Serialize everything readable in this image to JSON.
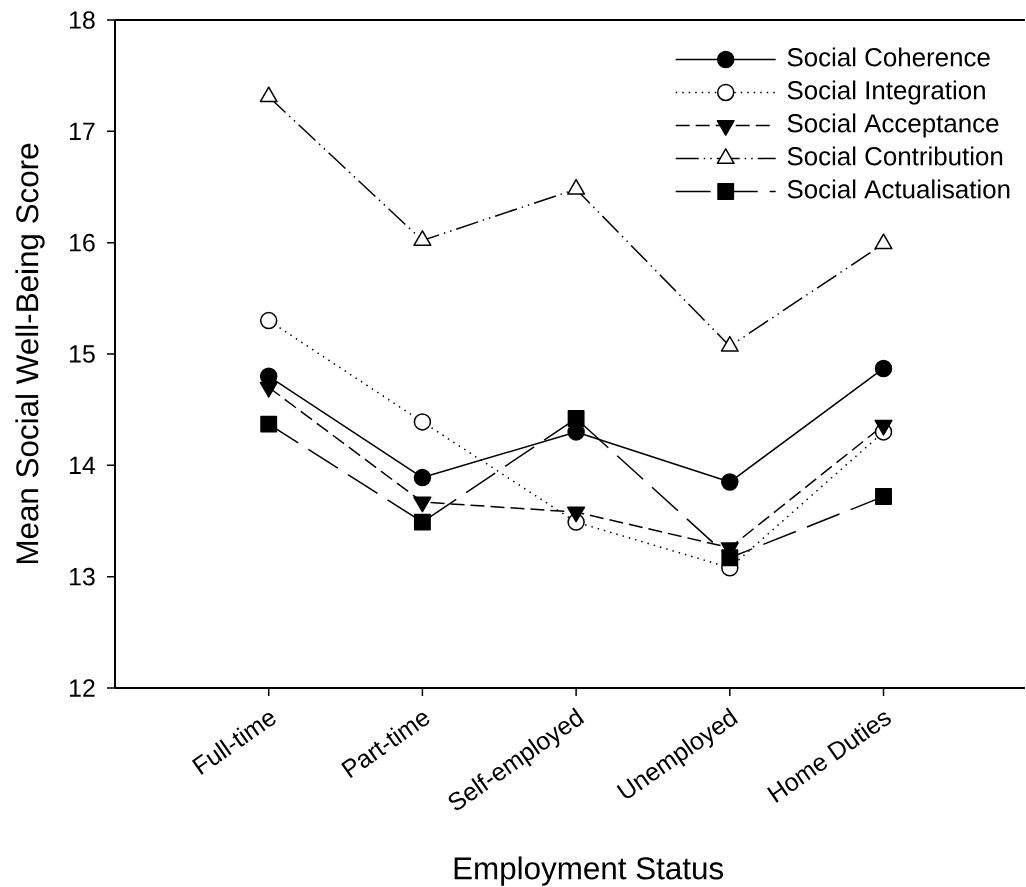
{
  "chart_data": {
    "type": "line",
    "xlabel": "Employment Status",
    "ylabel": "Mean Social Well-Being Score",
    "categories": [
      "Full-time",
      "Part-time",
      "Self-employed",
      "Unemployed",
      "Home Duties"
    ],
    "ylim": [
      12,
      18
    ],
    "yticks": [
      12,
      13,
      14,
      15,
      16,
      17,
      18
    ],
    "legend": "top right",
    "series": [
      {
        "name": "Social Coherence",
        "color": "#000000",
        "marker": "circle",
        "line_style": "solid",
        "values": [
          14.8,
          13.89,
          14.3,
          13.85,
          14.87
        ]
      },
      {
        "name": "Social Integration",
        "color": "#000000",
        "marker": "circle-open",
        "line_style": "dotted",
        "values": [
          15.3,
          14.39,
          13.49,
          13.08,
          14.3
        ]
      },
      {
        "name": "Social Acceptance",
        "color": "#000000",
        "marker": "triangle-down",
        "line_style": "dashed",
        "values": [
          14.7,
          13.67,
          13.58,
          13.26,
          14.36
        ]
      },
      {
        "name": "Social Contribution",
        "color": "#000000",
        "marker": "triangle-open",
        "line_style": "dashdotdotted",
        "values": [
          17.31,
          16.02,
          16.48,
          15.07,
          15.99
        ]
      },
      {
        "name": "Social Actualisation",
        "color": "#000000",
        "marker": "square",
        "line_style": "long dashed",
        "values": [
          14.37,
          13.49,
          14.42,
          13.17,
          13.72
        ]
      }
    ]
  }
}
